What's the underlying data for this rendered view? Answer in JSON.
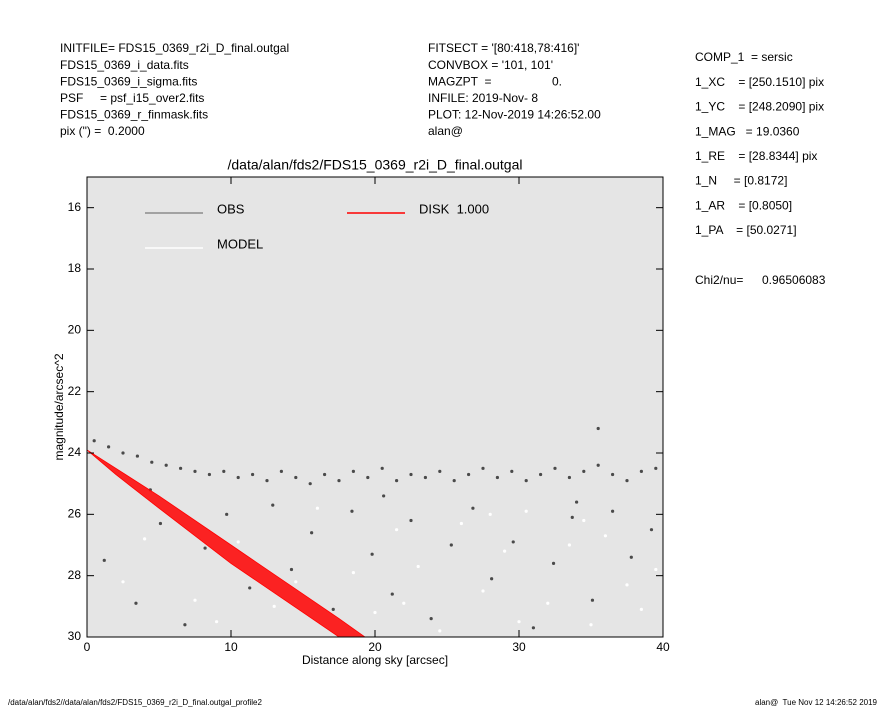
{
  "chart_data": {
    "type": "scatter",
    "title": "/data/alan/fds2/FDS15_0369_r2i_D_final.outgal",
    "x_label": "Distance along sky [arcsec]",
    "y_label": "magnitude/arcsec^2",
    "xlim": [
      0,
      40
    ],
    "ylim": [
      15,
      30
    ],
    "y_inverted": true,
    "xticks": [
      0,
      10,
      20,
      30,
      40
    ],
    "yticks": [
      16,
      18,
      20,
      22,
      24,
      26,
      28,
      30
    ],
    "plot_background": "#e5e5e5",
    "series": [
      {
        "name": "OBS",
        "color": "#4a4a4a",
        "legend_color": "#8c8c8c",
        "x": [
          0.5,
          1.5,
          2.5,
          3.5,
          4.5,
          5.5,
          6.5,
          7.5,
          8.5,
          9.5,
          10.5,
          11.5,
          12.5,
          13.5,
          14.5,
          15.5,
          16.5,
          17.5,
          18.5,
          19.5,
          20.5,
          21.5,
          22.5,
          23.5,
          24.5,
          25.5,
          26.5,
          27.5,
          28.5,
          29.5,
          30.5,
          31.5,
          32.5,
          33.5,
          34.5,
          35.5,
          36.5,
          37.5,
          38.5,
          39.5,
          1.2,
          3.4,
          5.1,
          6.8,
          8.2,
          9.7,
          11.3,
          12.9,
          14.2,
          15.6,
          17.1,
          18.4,
          19.8,
          21.2,
          22.5,
          23.9,
          25.3,
          26.8,
          28.1,
          29.6,
          31.0,
          32.4,
          33.7,
          35.1,
          36.5,
          37.8,
          39.2,
          4.4,
          20.6,
          34.0,
          35.5
        ],
        "values": [
          23.6,
          23.8,
          24.0,
          24.1,
          24.3,
          24.4,
          24.5,
          24.6,
          24.7,
          24.6,
          24.8,
          24.7,
          24.9,
          24.6,
          24.8,
          25.0,
          24.7,
          24.9,
          24.6,
          24.8,
          24.5,
          24.9,
          24.7,
          24.8,
          24.6,
          24.9,
          24.7,
          24.5,
          24.8,
          24.6,
          24.9,
          24.7,
          24.5,
          24.8,
          24.6,
          24.4,
          24.7,
          24.9,
          24.6,
          24.5,
          27.5,
          28.9,
          26.3,
          29.6,
          27.1,
          26.0,
          28.4,
          25.7,
          27.8,
          26.6,
          29.1,
          25.9,
          27.3,
          28.6,
          26.2,
          29.4,
          27.0,
          25.8,
          28.1,
          26.9,
          29.7,
          27.6,
          26.1,
          28.8,
          25.9,
          27.4,
          26.5,
          25.2,
          25.4,
          25.6,
          23.2
        ]
      },
      {
        "name": "MODEL",
        "color": "#ffffff",
        "legend_color": "#ffffff",
        "x": [
          2.5,
          4.0,
          7.5,
          9.0,
          10.5,
          13.0,
          16.0,
          18.5,
          20.0,
          21.5,
          23.0,
          24.5,
          26.0,
          27.5,
          29.0,
          30.5,
          32.0,
          33.5,
          35.0,
          36.0,
          37.5,
          38.5,
          39.5,
          14.5,
          22.0,
          30.0,
          28.0,
          34.5
        ],
        "values": [
          28.2,
          26.8,
          28.8,
          29.5,
          26.9,
          29.0,
          25.8,
          27.9,
          29.2,
          26.5,
          27.7,
          29.8,
          26.3,
          28.5,
          27.2,
          25.9,
          28.9,
          27.0,
          29.6,
          26.7,
          28.3,
          29.1,
          27.8,
          28.2,
          28.9,
          29.5,
          26.0,
          26.2
        ]
      },
      {
        "name": "DISK  1.000",
        "type": "area",
        "color": "#ff0000",
        "legend_color": "#ff0000",
        "x": [
          0,
          2,
          5,
          10,
          15,
          17.5,
          19.3
        ],
        "values": [
          23.9,
          24.5,
          25.4,
          27.0,
          28.6,
          29.4,
          30.0
        ],
        "values2": [
          23.9,
          24.7,
          25.8,
          27.6,
          29.2,
          30.0,
          30.6
        ]
      }
    ],
    "annotations": {
      "left": [
        "INITFILE= FDS15_0369_r2i_D_final.outgal",
        "FDS15_0369_i_data.fits",
        "FDS15_0369_i_sigma.fits",
        "PSF     = psf_i15_over2.fits",
        "FDS15_0369_r_finmask.fits",
        "pix (\") =  0.2000"
      ],
      "middle": [
        "FITSECT = '[80:418,78:416]'",
        "CONVBOX = '101, 101'",
        {
          "label": "MAGZPT  =",
          "value": "0."
        },
        "INFILE: 2019-Nov- 8",
        "PLOT: 12-Nov-2019 14:26:52.00",
        "alan@"
      ],
      "right": [
        "COMP_1  = sersic",
        "1_XC    = [250.1510] pix",
        "1_YC    = [248.2090] pix",
        "1_MAG   = 19.0360",
        "1_RE    = [28.8344] pix",
        "1_N     = [0.8172]",
        "1_AR    = [0.8050]",
        "1_PA    = [50.0271]"
      ],
      "chi2": {
        "label": "Chi2/nu=",
        "value": "0.96506083"
      },
      "footer_left": "/data/alan/fds2//data/alan/fds2/FDS15_0369_r2i_D_final.outgal_profile2",
      "footer_right": "alan@  Tue Nov 12 14:26:52 2019"
    }
  }
}
